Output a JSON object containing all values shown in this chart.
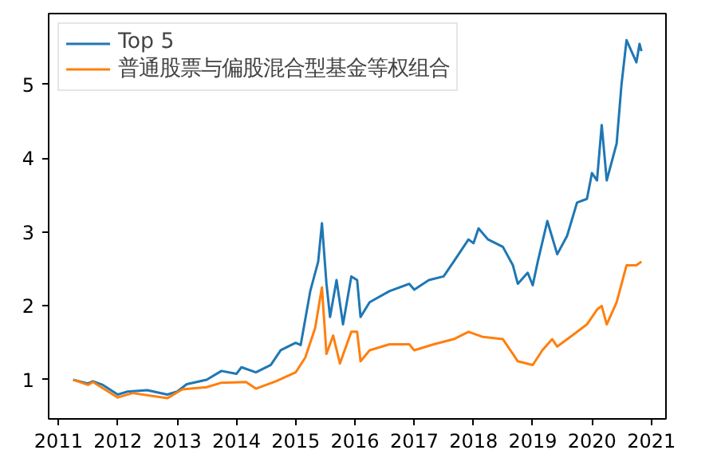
{
  "chart_data": {
    "type": "line",
    "xlim": [
      "2010-11",
      "2021-04"
    ],
    "ylim": [
      0.47,
      5.96
    ],
    "xticks": [
      "2011",
      "2012",
      "2013",
      "2014",
      "2015",
      "2016",
      "2017",
      "2018",
      "2019",
      "2020",
      "2021"
    ],
    "yticks": [
      1,
      2,
      3,
      4,
      5
    ],
    "grid": false,
    "legend": "top left",
    "series": [
      {
        "name": "Top 5",
        "color": "#1f77b4",
        "x": [
          "2011-04",
          "2011-07",
          "2011-08",
          "2011-10",
          "2012-01",
          "2012-03",
          "2012-07",
          "2012-11",
          "2013-01",
          "2013-03",
          "2013-07",
          "2013-10",
          "2014-01",
          "2014-02",
          "2014-05",
          "2014-08",
          "2014-10",
          "2015-01",
          "2015-02",
          "2015-04",
          "2015-05-20",
          "2015-06-12",
          "2015-07-10",
          "2015-08",
          "2015-09-10",
          "2015-10-20",
          "2015-12-10",
          "2016-01-15",
          "2016-02-05",
          "2016-04",
          "2016-08",
          "2016-12",
          "2017-01",
          "2017-04",
          "2017-07",
          "2017-09",
          "2017-12",
          "2018-01",
          "2018-02",
          "2018-04",
          "2018-07",
          "2018-09",
          "2018-10",
          "2018-12",
          "2019-01",
          "2019-02",
          "2019-04",
          "2019-06",
          "2019-08",
          "2019-10",
          "2019-12",
          "2020-01",
          "2020-02",
          "2020-03",
          "2020-04",
          "2020-06",
          "2020-07",
          "2020-08",
          "2020-10",
          "2020-10-20",
          "2020-11"
        ],
        "values": [
          1.0,
          0.95,
          0.98,
          0.93,
          0.8,
          0.84,
          0.86,
          0.8,
          0.84,
          0.94,
          1.0,
          1.12,
          1.08,
          1.17,
          1.1,
          1.2,
          1.4,
          1.5,
          1.47,
          2.2,
          2.6,
          3.12,
          2.3,
          1.85,
          2.35,
          1.75,
          2.4,
          2.35,
          1.85,
          2.05,
          2.2,
          2.3,
          2.22,
          2.35,
          2.4,
          2.6,
          2.9,
          2.85,
          3.05,
          2.9,
          2.8,
          2.55,
          2.3,
          2.45,
          2.28,
          2.6,
          3.15,
          2.7,
          2.95,
          3.4,
          3.45,
          3.8,
          3.7,
          4.45,
          3.7,
          4.2,
          5.0,
          5.6,
          5.3,
          5.55,
          5.45
        ]
      },
      {
        "name": "普通股票与偏股混合型基金等权组合",
        "color": "#ff7f0e",
        "x": [
          "2011-04",
          "2011-07",
          "2011-08",
          "2012-01",
          "2012-04",
          "2012-11",
          "2013-02",
          "2013-07",
          "2013-10",
          "2014-03",
          "2014-05",
          "2014-09",
          "2015-01",
          "2015-03",
          "2015-05",
          "2015-06-12",
          "2015-07-10",
          "2015-08-20",
          "2015-10",
          "2015-12-10",
          "2016-01-15",
          "2016-02-05",
          "2016-04",
          "2016-08",
          "2016-12",
          "2017-01",
          "2017-05",
          "2017-09",
          "2017-12",
          "2018-03",
          "2018-07",
          "2018-09",
          "2018-10",
          "2019-01",
          "2019-03",
          "2019-05",
          "2019-06",
          "2019-09",
          "2019-12",
          "2020-02",
          "2020-03",
          "2020-04",
          "2020-06",
          "2020-08",
          "2020-10",
          "2020-11"
        ],
        "values": [
          1.0,
          0.93,
          0.97,
          0.76,
          0.82,
          0.75,
          0.87,
          0.9,
          0.96,
          0.97,
          0.88,
          0.98,
          1.1,
          1.3,
          1.7,
          2.25,
          1.35,
          1.6,
          1.22,
          1.65,
          1.65,
          1.25,
          1.4,
          1.48,
          1.48,
          1.4,
          1.48,
          1.55,
          1.65,
          1.58,
          1.55,
          1.35,
          1.25,
          1.2,
          1.4,
          1.55,
          1.45,
          1.6,
          1.75,
          1.95,
          2.0,
          1.75,
          2.05,
          2.55,
          2.55,
          2.6
        ]
      }
    ]
  }
}
